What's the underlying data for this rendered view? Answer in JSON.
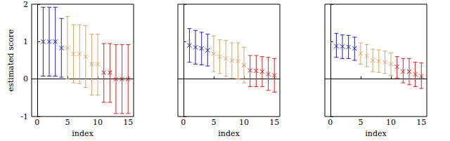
{
  "chart_data": [
    {
      "type": "scatter",
      "marker": "x",
      "x_label": "index",
      "y_label": "estimated score",
      "x": [
        1,
        2,
        3,
        4,
        5,
        6,
        7,
        8,
        9,
        10,
        11,
        12,
        13,
        14,
        15
      ],
      "values": [
        1.0,
        1.0,
        1.0,
        0.83,
        0.83,
        0.67,
        0.67,
        0.6,
        0.4,
        0.4,
        0.17,
        0.17,
        0.0,
        0.0,
        0.0
      ],
      "lower": [
        0.08,
        0.08,
        0.08,
        0.05,
        0.0,
        -0.1,
        -0.12,
        -0.22,
        -0.43,
        -0.43,
        -0.62,
        -0.62,
        -0.92,
        -0.92,
        -0.92
      ],
      "upper": [
        1.92,
        1.92,
        1.92,
        1.62,
        1.67,
        1.45,
        1.45,
        1.43,
        1.2,
        1.2,
        0.95,
        0.95,
        0.92,
        0.92,
        0.92
      ],
      "colors": [
        "#2020c0",
        "#2020c0",
        "#2020c0",
        "#2020c0",
        "#d8a26a",
        "#d8a26a",
        "#d8a26a",
        "#d8a26a",
        "#d8a26a",
        "#d8a26a",
        "#e02020",
        "#e02020",
        "#e02020",
        "#e02020",
        "#e02020"
      ],
      "xlim": [
        -0.9,
        15.9
      ],
      "xticks": [
        0,
        5,
        10,
        15
      ],
      "ylim": [
        -1,
        2
      ],
      "yticks": [
        -1,
        0,
        1,
        2
      ],
      "tick_labels": true
    },
    {
      "type": "scatter",
      "marker": "x",
      "x_label": "index",
      "x": [
        1,
        2,
        3,
        4,
        5,
        6,
        7,
        8,
        9,
        10,
        11,
        12,
        13,
        14,
        15
      ],
      "values": [
        0.9,
        0.85,
        0.82,
        0.77,
        0.68,
        0.6,
        0.55,
        0.5,
        0.48,
        0.37,
        0.23,
        0.22,
        0.2,
        0.13,
        0.1
      ],
      "lower": [
        0.45,
        0.4,
        0.38,
        0.35,
        0.2,
        0.15,
        0.07,
        0.02,
        0.0,
        -0.1,
        -0.2,
        -0.2,
        -0.2,
        -0.3,
        -0.35
      ],
      "upper": [
        1.35,
        1.3,
        1.25,
        1.2,
        1.15,
        1.05,
        1.03,
        0.97,
        0.97,
        0.85,
        0.63,
        0.63,
        0.6,
        0.58,
        0.55
      ],
      "colors": [
        "#2020c0",
        "#2020c0",
        "#2020c0",
        "#2020c0",
        "#d8a26a",
        "#d8a26a",
        "#d8a26a",
        "#d8a26a",
        "#d8a26a",
        "#d8a26a",
        "#e02020",
        "#e02020",
        "#e02020",
        "#e02020",
        "#e02020"
      ],
      "xlim": [
        -0.9,
        15.9
      ],
      "xticks": [
        0,
        5,
        10,
        15
      ],
      "ylim": [
        -1,
        2
      ],
      "yticks": [
        -1,
        0,
        1,
        2
      ],
      "tick_labels": "x"
    },
    {
      "type": "scatter",
      "marker": "x",
      "x_label": "index",
      "x": [
        1,
        2,
        3,
        4,
        5,
        6,
        7,
        8,
        9,
        10,
        11,
        12,
        13,
        14,
        15
      ],
      "values": [
        0.88,
        0.87,
        0.86,
        0.82,
        0.68,
        0.62,
        0.5,
        0.48,
        0.45,
        0.4,
        0.33,
        0.2,
        0.2,
        0.13,
        0.08
      ],
      "lower": [
        0.58,
        0.55,
        0.55,
        0.5,
        0.4,
        0.33,
        0.2,
        0.18,
        0.15,
        0.1,
        0.03,
        -0.1,
        -0.15,
        -0.2,
        -0.25
      ],
      "upper": [
        1.22,
        1.18,
        1.17,
        1.12,
        0.97,
        0.92,
        0.8,
        0.78,
        0.75,
        0.7,
        0.6,
        0.55,
        0.55,
        0.45,
        0.43
      ],
      "colors": [
        "#2020c0",
        "#2020c0",
        "#2020c0",
        "#2020c0",
        "#d8a26a",
        "#d8a26a",
        "#d8a26a",
        "#d8a26a",
        "#d8a26a",
        "#d8a26a",
        "#e02020",
        "#e02020",
        "#e02020",
        "#e02020",
        "#e02020"
      ],
      "xlim": [
        -0.9,
        15.9
      ],
      "xticks": [
        0,
        5,
        10,
        15
      ],
      "ylim": [
        -1,
        2
      ],
      "yticks": [
        -1,
        0,
        1,
        2
      ],
      "tick_labels": "x"
    }
  ]
}
